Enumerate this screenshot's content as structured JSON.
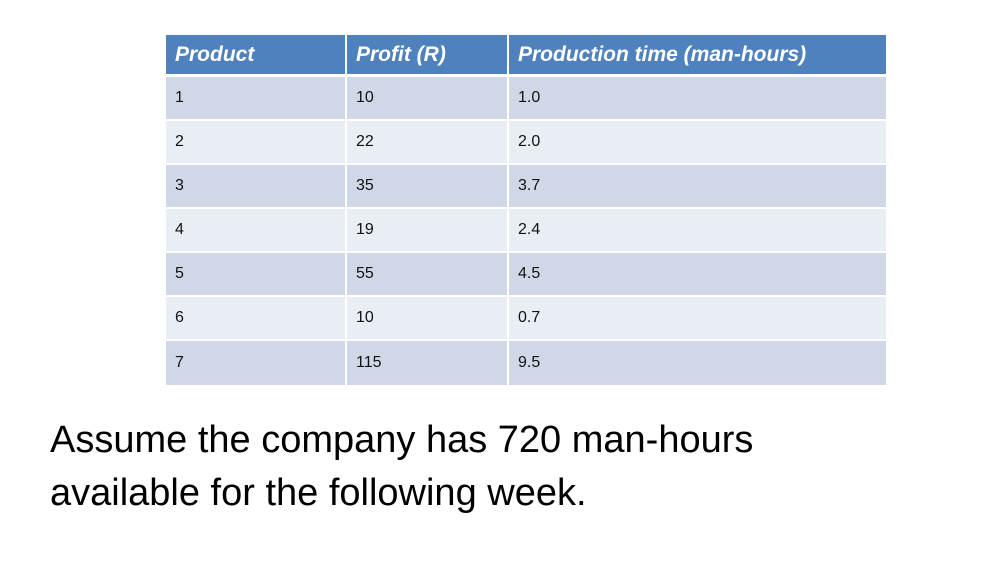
{
  "table": {
    "headers": [
      "Product",
      "Profit (R)",
      "Production time (man-hours)"
    ],
    "rows": [
      [
        "1",
        "10",
        "1.0"
      ],
      [
        "2",
        "22",
        "2.0"
      ],
      [
        "3",
        "35",
        "3.7"
      ],
      [
        "4",
        "19",
        "2.4"
      ],
      [
        "5",
        "55",
        "4.5"
      ],
      [
        "6",
        "10",
        "0.7"
      ],
      [
        "7",
        "115",
        "9.5"
      ]
    ]
  },
  "body": {
    "line1": "Assume the company has 720 man-hours",
    "line2": "available for the following week."
  },
  "colors": {
    "header_bg": "#4f81bd",
    "row_odd_bg": "#d0d8e8",
    "row_even_bg": "#e9edf4"
  }
}
